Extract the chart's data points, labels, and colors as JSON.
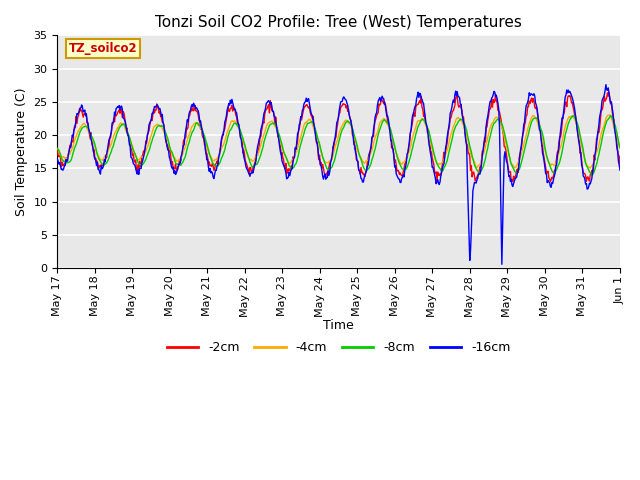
{
  "title": "Tonzi Soil CO2 Profile: Tree (West) Temperatures",
  "xlabel": "Time",
  "ylabel": "Soil Temperature (C)",
  "legend_label": "TZ_soilco2",
  "series_labels": [
    "-2cm",
    "-4cm",
    "-8cm",
    "-16cm"
  ],
  "series_colors": [
    "#ff0000",
    "#ffaa00",
    "#00cc00",
    "#0000ff"
  ],
  "ylim": [
    0,
    35
  ],
  "yticks": [
    0,
    5,
    10,
    15,
    20,
    25,
    30,
    35
  ],
  "background_color": "#e8e8e8",
  "grid_color": "#ffffff",
  "title_fontsize": 11,
  "axis_fontsize": 9,
  "tick_fontsize": 8,
  "legend_box_color": "#ffffcc",
  "legend_box_edge": "#cc9900",
  "xtick_labels": [
    "May 17",
    "May 18",
    "May 19",
    "May 20",
    "May 21",
    "May 22",
    "May 23",
    "May 24",
    "May 25",
    "May 26",
    "May 27",
    "May 28",
    "May 29",
    "May 30",
    "May 31",
    "Jun 1"
  ]
}
